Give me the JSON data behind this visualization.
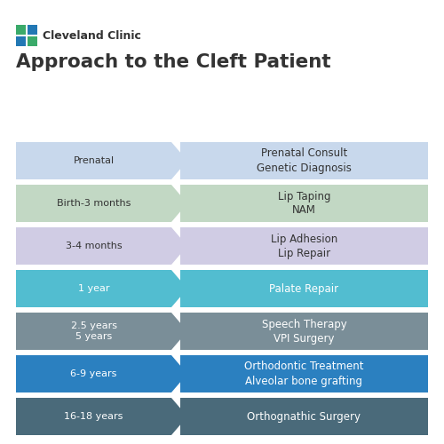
{
  "title": "Approach to the Cleft Patient",
  "subtitle": "Cleveland Clinic",
  "background_color": "#ffffff",
  "rows": [
    {
      "left_label": "Prenatal",
      "right_label": "Prenatal Consult\nGenetic Diagnosis",
      "color": "#c8d8ec",
      "text_color": "#333333"
    },
    {
      "left_label": "Birth-3 months",
      "right_label": "Lip Taping\nNAM",
      "color": "#c2d8c4",
      "text_color": "#333333"
    },
    {
      "left_label": "3-4 months",
      "right_label": "Lip Adhesion\nLip Repair",
      "color": "#d0cce4",
      "text_color": "#333333"
    },
    {
      "left_label": "1 year",
      "right_label": "Palate Repair",
      "color": "#52bdd0",
      "text_color": "#ffffff"
    },
    {
      "left_label": "2.5 years\n5 years",
      "right_label": "Speech Therapy\nVPI Surgery",
      "color": "#7a8e98",
      "text_color": "#ffffff"
    },
    {
      "left_label": "6-9 years",
      "right_label": "Orthodontic Treatment\nAlveolar bone grafting",
      "color": "#2b80c0",
      "text_color": "#ffffff"
    },
    {
      "left_label": "16-18 years",
      "right_label": "Orthognathic Surgery",
      "color": "#4a6a7a",
      "text_color": "#ffffff"
    }
  ],
  "logo_blue": "#2278b4",
  "logo_green": "#3aaa6a",
  "title_color": "#333333",
  "subtitle_color": "#333333"
}
